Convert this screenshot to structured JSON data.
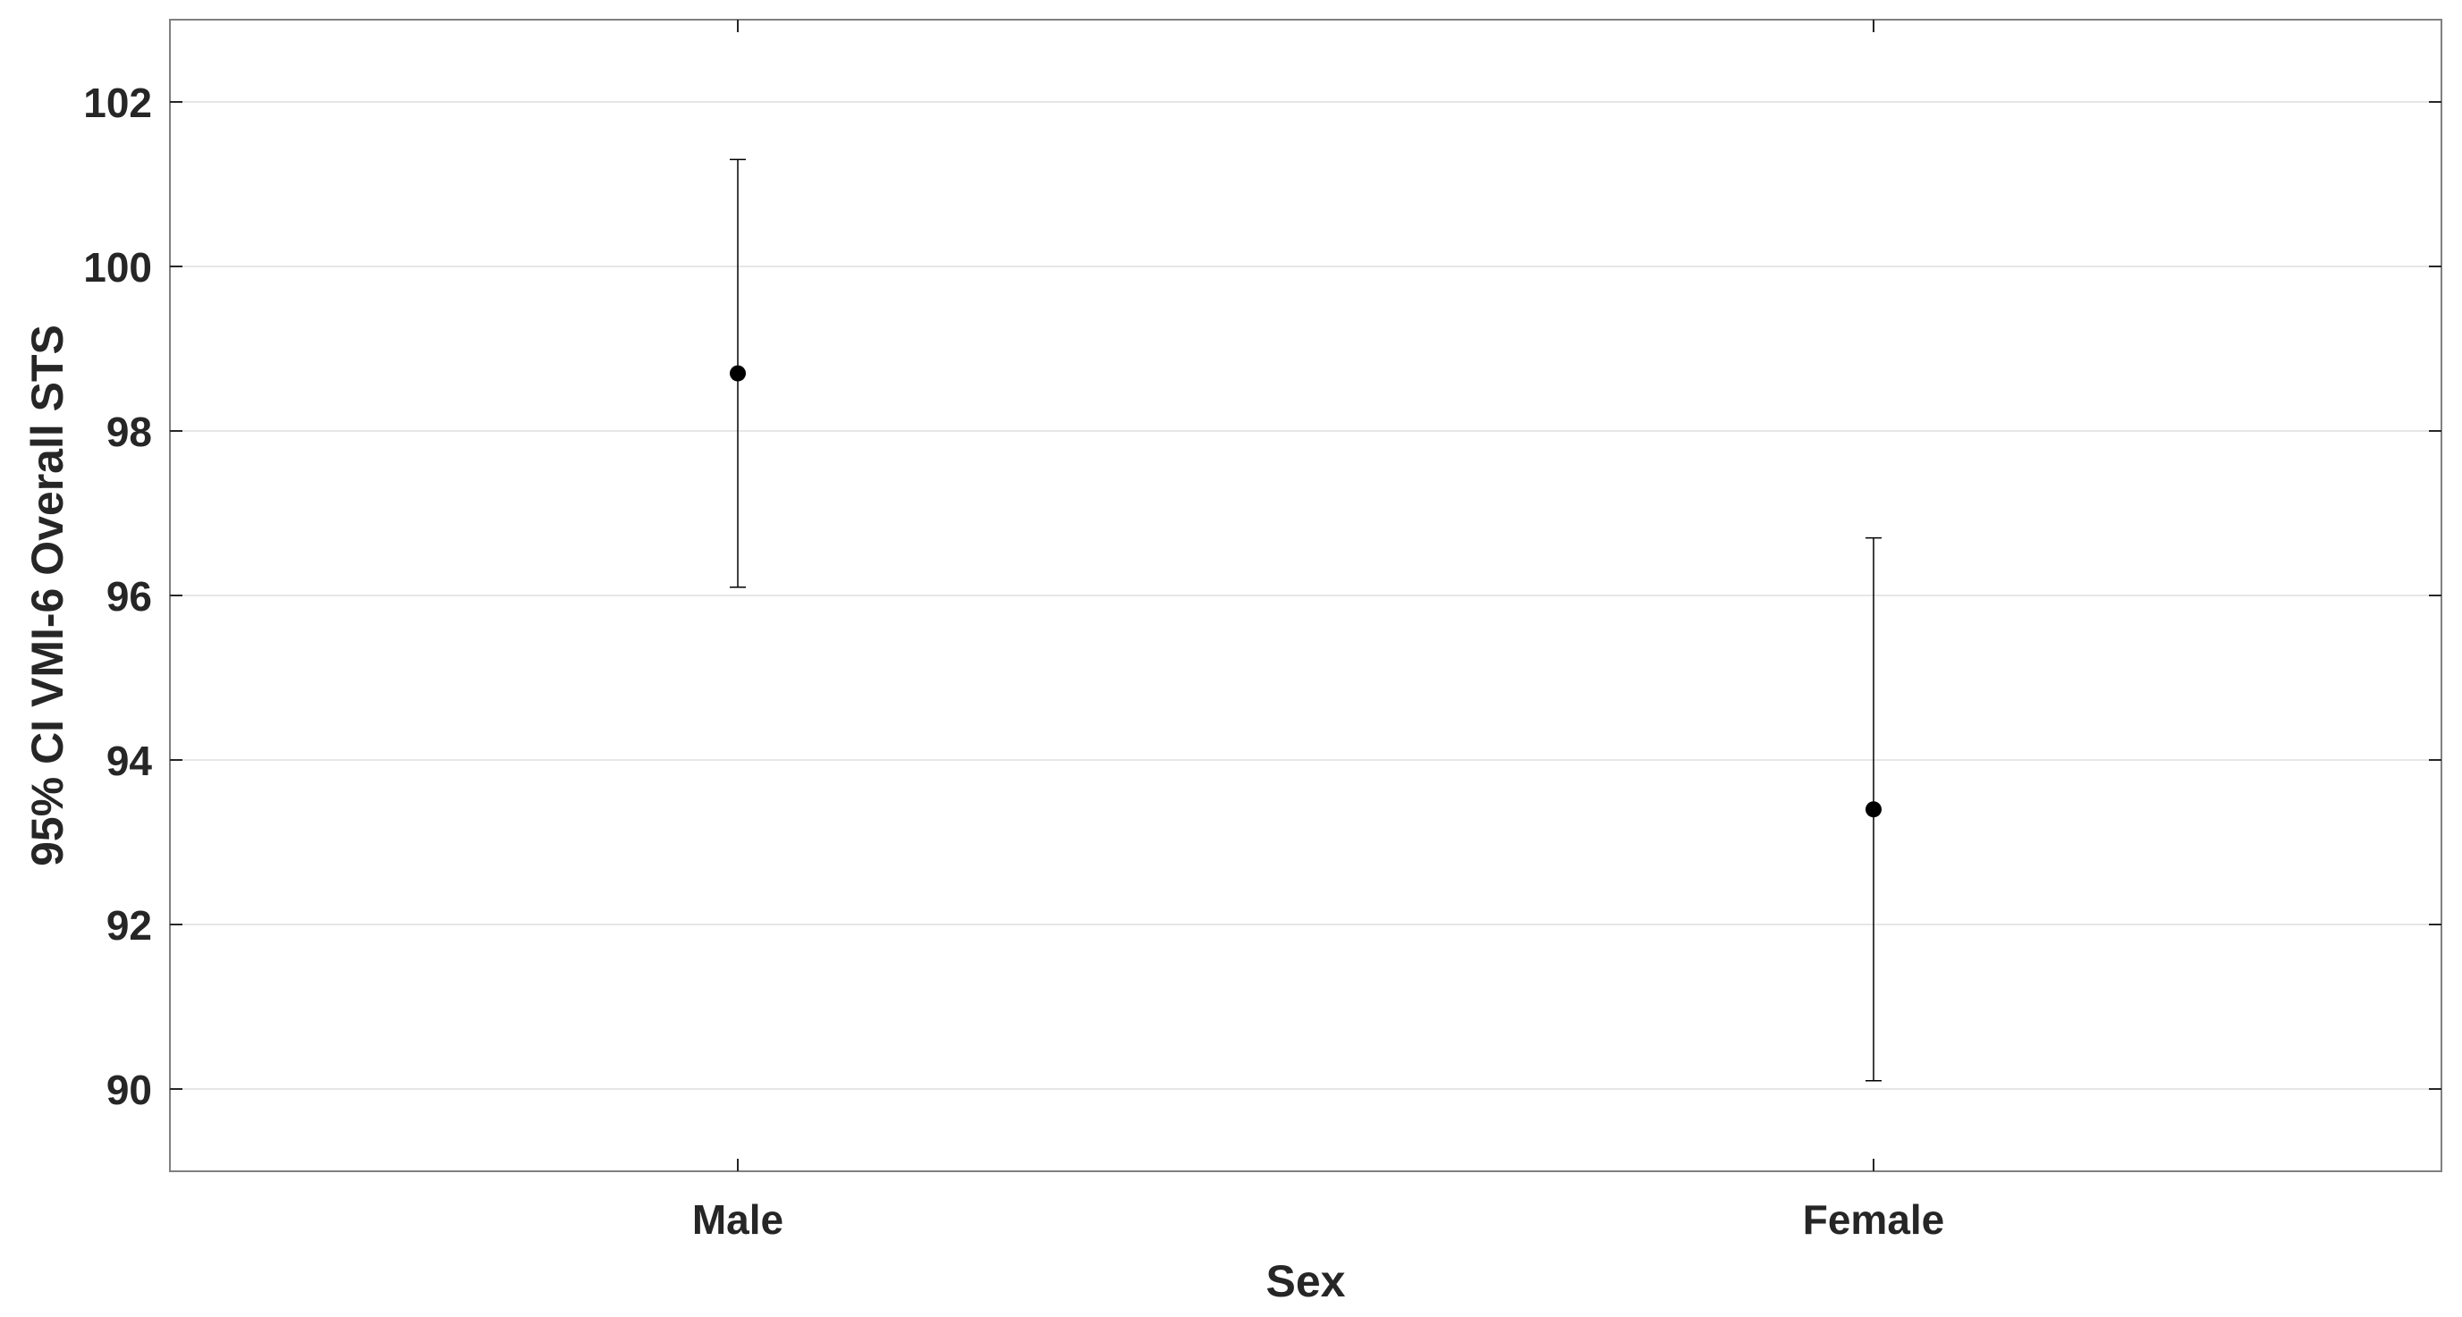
{
  "chart_data": {
    "type": "scatter",
    "subtype": "errorbar",
    "title": "",
    "xlabel": "Sex",
    "ylabel": "95% CI VMI-6 Overall STS",
    "categories": [
      "Male",
      "Female"
    ],
    "values": [
      98.7,
      93.4
    ],
    "ci_lower": [
      96.1,
      90.1
    ],
    "ci_upper": [
      101.3,
      96.7
    ],
    "ylim": [
      89,
      103
    ],
    "yticks": [
      90,
      92,
      94,
      96,
      98,
      100,
      102
    ],
    "xlim": [
      0.5,
      2.5
    ],
    "grid": "y",
    "legend": "none",
    "colors": {
      "marker": "#000000",
      "errorbar": "#000000",
      "axes": "#262626",
      "grid": "#e6e6e6",
      "box": "#808080"
    }
  }
}
